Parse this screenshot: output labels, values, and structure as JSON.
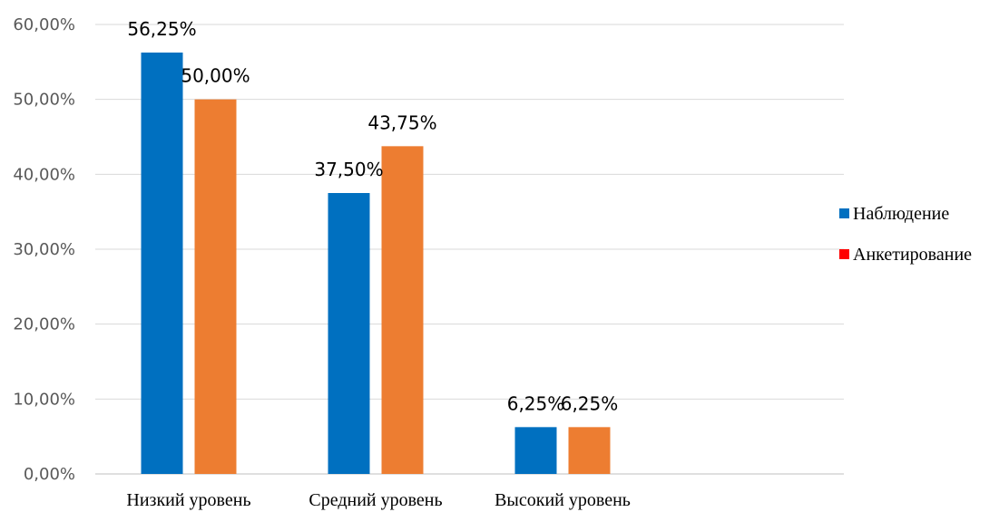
{
  "chart_data": {
    "type": "bar",
    "categories": [
      "Низкий уровень",
      "Средний уровень",
      "Высокий уровень"
    ],
    "series": [
      {
        "name": "Наблюдение",
        "values": [
          56.25,
          37.5,
          6.25
        ],
        "labels": [
          "56,25%",
          "37,50%",
          "6,25%"
        ],
        "color": "#0070C0",
        "legend_color": "#0070C0"
      },
      {
        "name": "Анкетирование",
        "values": [
          50.0,
          43.75,
          6.25
        ],
        "labels": [
          "50,00%",
          "43,75%",
          "6,25%"
        ],
        "color": "#ED7D31",
        "legend_color": "#FF0000"
      }
    ],
    "ylim": [
      0,
      60
    ],
    "yticks": [
      {
        "value": 0,
        "label": "0,00%"
      },
      {
        "value": 10,
        "label": "10,00%"
      },
      {
        "value": 20,
        "label": "20,00%"
      },
      {
        "value": 30,
        "label": "30,00%"
      },
      {
        "value": 40,
        "label": "40,00%"
      },
      {
        "value": 50,
        "label": "50,00%"
      },
      {
        "value": 60,
        "label": "60,00%"
      }
    ],
    "grid": true,
    "legend_position": "right",
    "title": "",
    "xlabel": "",
    "ylabel": ""
  }
}
